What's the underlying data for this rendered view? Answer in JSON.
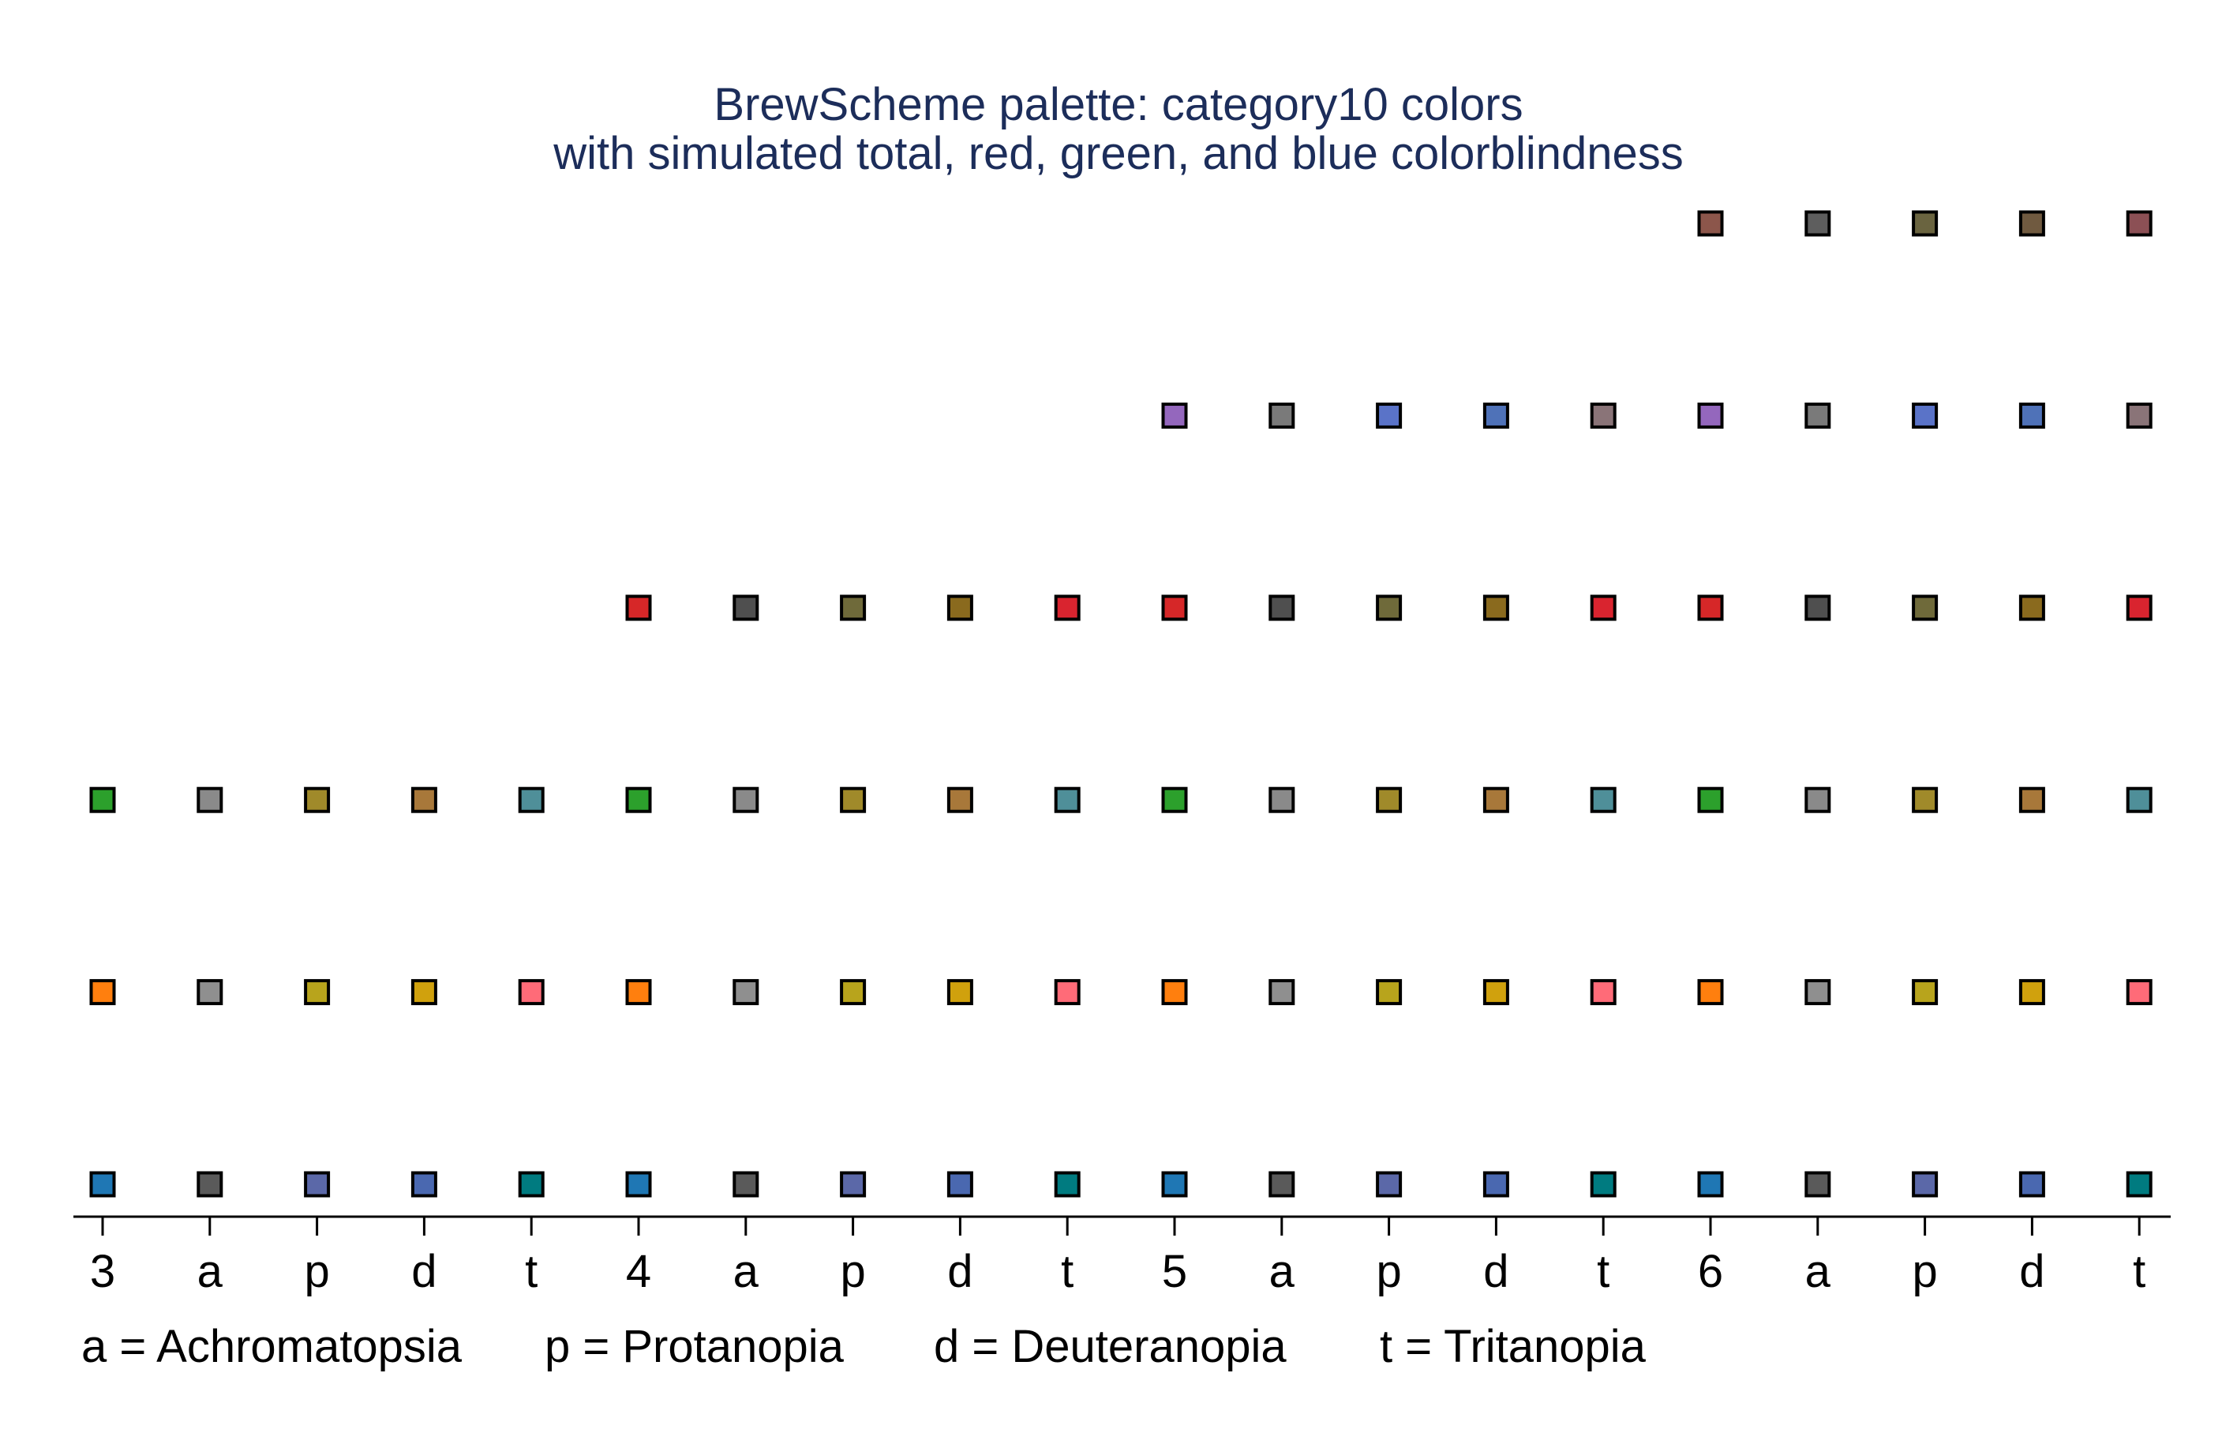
{
  "chart_data": {
    "type": "scatter",
    "title": "BrewScheme palette: category10 colors",
    "subtitle": "with simulated total, red, green, and blue colorblindness",
    "x_tick_labels": [
      "3",
      "a",
      "p",
      "d",
      "t",
      "4",
      "a",
      "p",
      "d",
      "t",
      "5",
      "a",
      "p",
      "d",
      "t",
      "6",
      "a",
      "p",
      "d",
      "t"
    ],
    "legend_notes": [
      "a = Achromatopsia",
      "p = Protanopia",
      "d = Deuteranopia",
      "t = Tritanopia"
    ],
    "grid": false,
    "groups": [
      {
        "label": "3",
        "rows": [
          [
            "#1f77b4",
            "#5a5a5a",
            "#5b68a8",
            "#4a68b0",
            "#007b80"
          ],
          [
            "#ff7f0e",
            "#8f8f8f",
            "#b8a41c",
            "#d0a10d",
            "#ff6b78"
          ],
          [
            "#2ca02c",
            "#8a8a8a",
            "#a08a2a",
            "#a8783a",
            "#4f8f99"
          ]
        ]
      },
      {
        "label": "4",
        "rows": [
          [
            "#1f77b4",
            "#5a5a5a",
            "#5b68a8",
            "#4a68b0",
            "#007b80"
          ],
          [
            "#ff7f0e",
            "#8f8f8f",
            "#b8a41c",
            "#d0a10d",
            "#ff6b78"
          ],
          [
            "#2ca02c",
            "#8a8a8a",
            "#a08a2a",
            "#a8783a",
            "#4f8f99"
          ],
          [
            "#d62728",
            "#4f4f4f",
            "#6f6a3a",
            "#8a6a1e",
            "#d9242f"
          ]
        ]
      },
      {
        "label": "5",
        "rows": [
          [
            "#1f77b4",
            "#5a5a5a",
            "#5b68a8",
            "#4a68b0",
            "#007b80"
          ],
          [
            "#ff7f0e",
            "#8f8f8f",
            "#b8a41c",
            "#d0a10d",
            "#ff6b78"
          ],
          [
            "#2ca02c",
            "#8a8a8a",
            "#a08a2a",
            "#a8783a",
            "#4f8f99"
          ],
          [
            "#d62728",
            "#4f4f4f",
            "#6f6a3a",
            "#8a6a1e",
            "#d9242f"
          ],
          [
            "#9467bd",
            "#7a7a7a",
            "#5a73c8",
            "#4f72b8",
            "#8a7478"
          ]
        ]
      },
      {
        "label": "6",
        "rows": [
          [
            "#1f77b4",
            "#5a5a5a",
            "#5b68a8",
            "#4a68b0",
            "#007b80"
          ],
          [
            "#ff7f0e",
            "#8f8f8f",
            "#b8a41c",
            "#d0a10d",
            "#ff6b78"
          ],
          [
            "#2ca02c",
            "#8a8a8a",
            "#a08a2a",
            "#a8783a",
            "#4f8f99"
          ],
          [
            "#d62728",
            "#4f4f4f",
            "#6f6a3a",
            "#8a6a1e",
            "#d9242f"
          ],
          [
            "#9467bd",
            "#7a7a7a",
            "#5a73c8",
            "#4f72b8",
            "#8a7478"
          ],
          [
            "#8c564b",
            "#5e5e5e",
            "#6a6440",
            "#705a40",
            "#8c5055"
          ]
        ]
      }
    ]
  }
}
